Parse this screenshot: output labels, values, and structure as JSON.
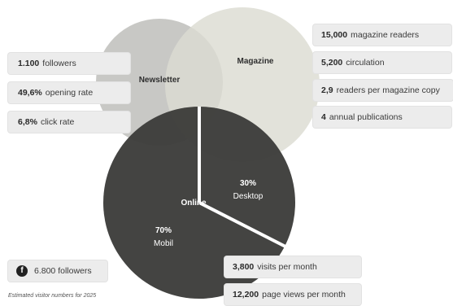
{
  "colors": {
    "newsletter_circle": "#c8c8c5",
    "magazine_circle": "#dcdcd2",
    "online_circle": "#3c3c3a",
    "divider": "#ffffff",
    "tag_bg": "#ececec"
  },
  "circles": {
    "newsletter": "Newsletter",
    "magazine": "Magazine",
    "online": "Online"
  },
  "segments": {
    "desktop": {
      "percent": "30%",
      "label": "Desktop"
    },
    "mobile": {
      "percent": "70%",
      "label": "Mobil"
    }
  },
  "chart_data": {
    "type": "pie",
    "categories": [
      "Desktop",
      "Mobil"
    ],
    "values": [
      30,
      70
    ]
  },
  "newsletter_stats": [
    {
      "value": "1.100",
      "text": "followers"
    },
    {
      "value": "49,6%",
      "text": "opening rate"
    },
    {
      "value": "6,8%",
      "text": "click rate"
    }
  ],
  "magazine_stats": [
    {
      "value": "15,000",
      "text": "magazine readers"
    },
    {
      "value": "5,200",
      "text": "circulation"
    },
    {
      "value": "2,9",
      "text": "readers per magazine copy"
    },
    {
      "value": "4",
      "text": "annual publications"
    }
  ],
  "online_stats": [
    {
      "value": "3,800",
      "text": "visits per month"
    },
    {
      "value": "12,200",
      "text": "page views per month"
    }
  ],
  "facebook": {
    "icon": "facebook-icon",
    "glyph": "f",
    "text": "6.800 followers"
  },
  "footnote": "Estimated visitor numbers for 2025"
}
